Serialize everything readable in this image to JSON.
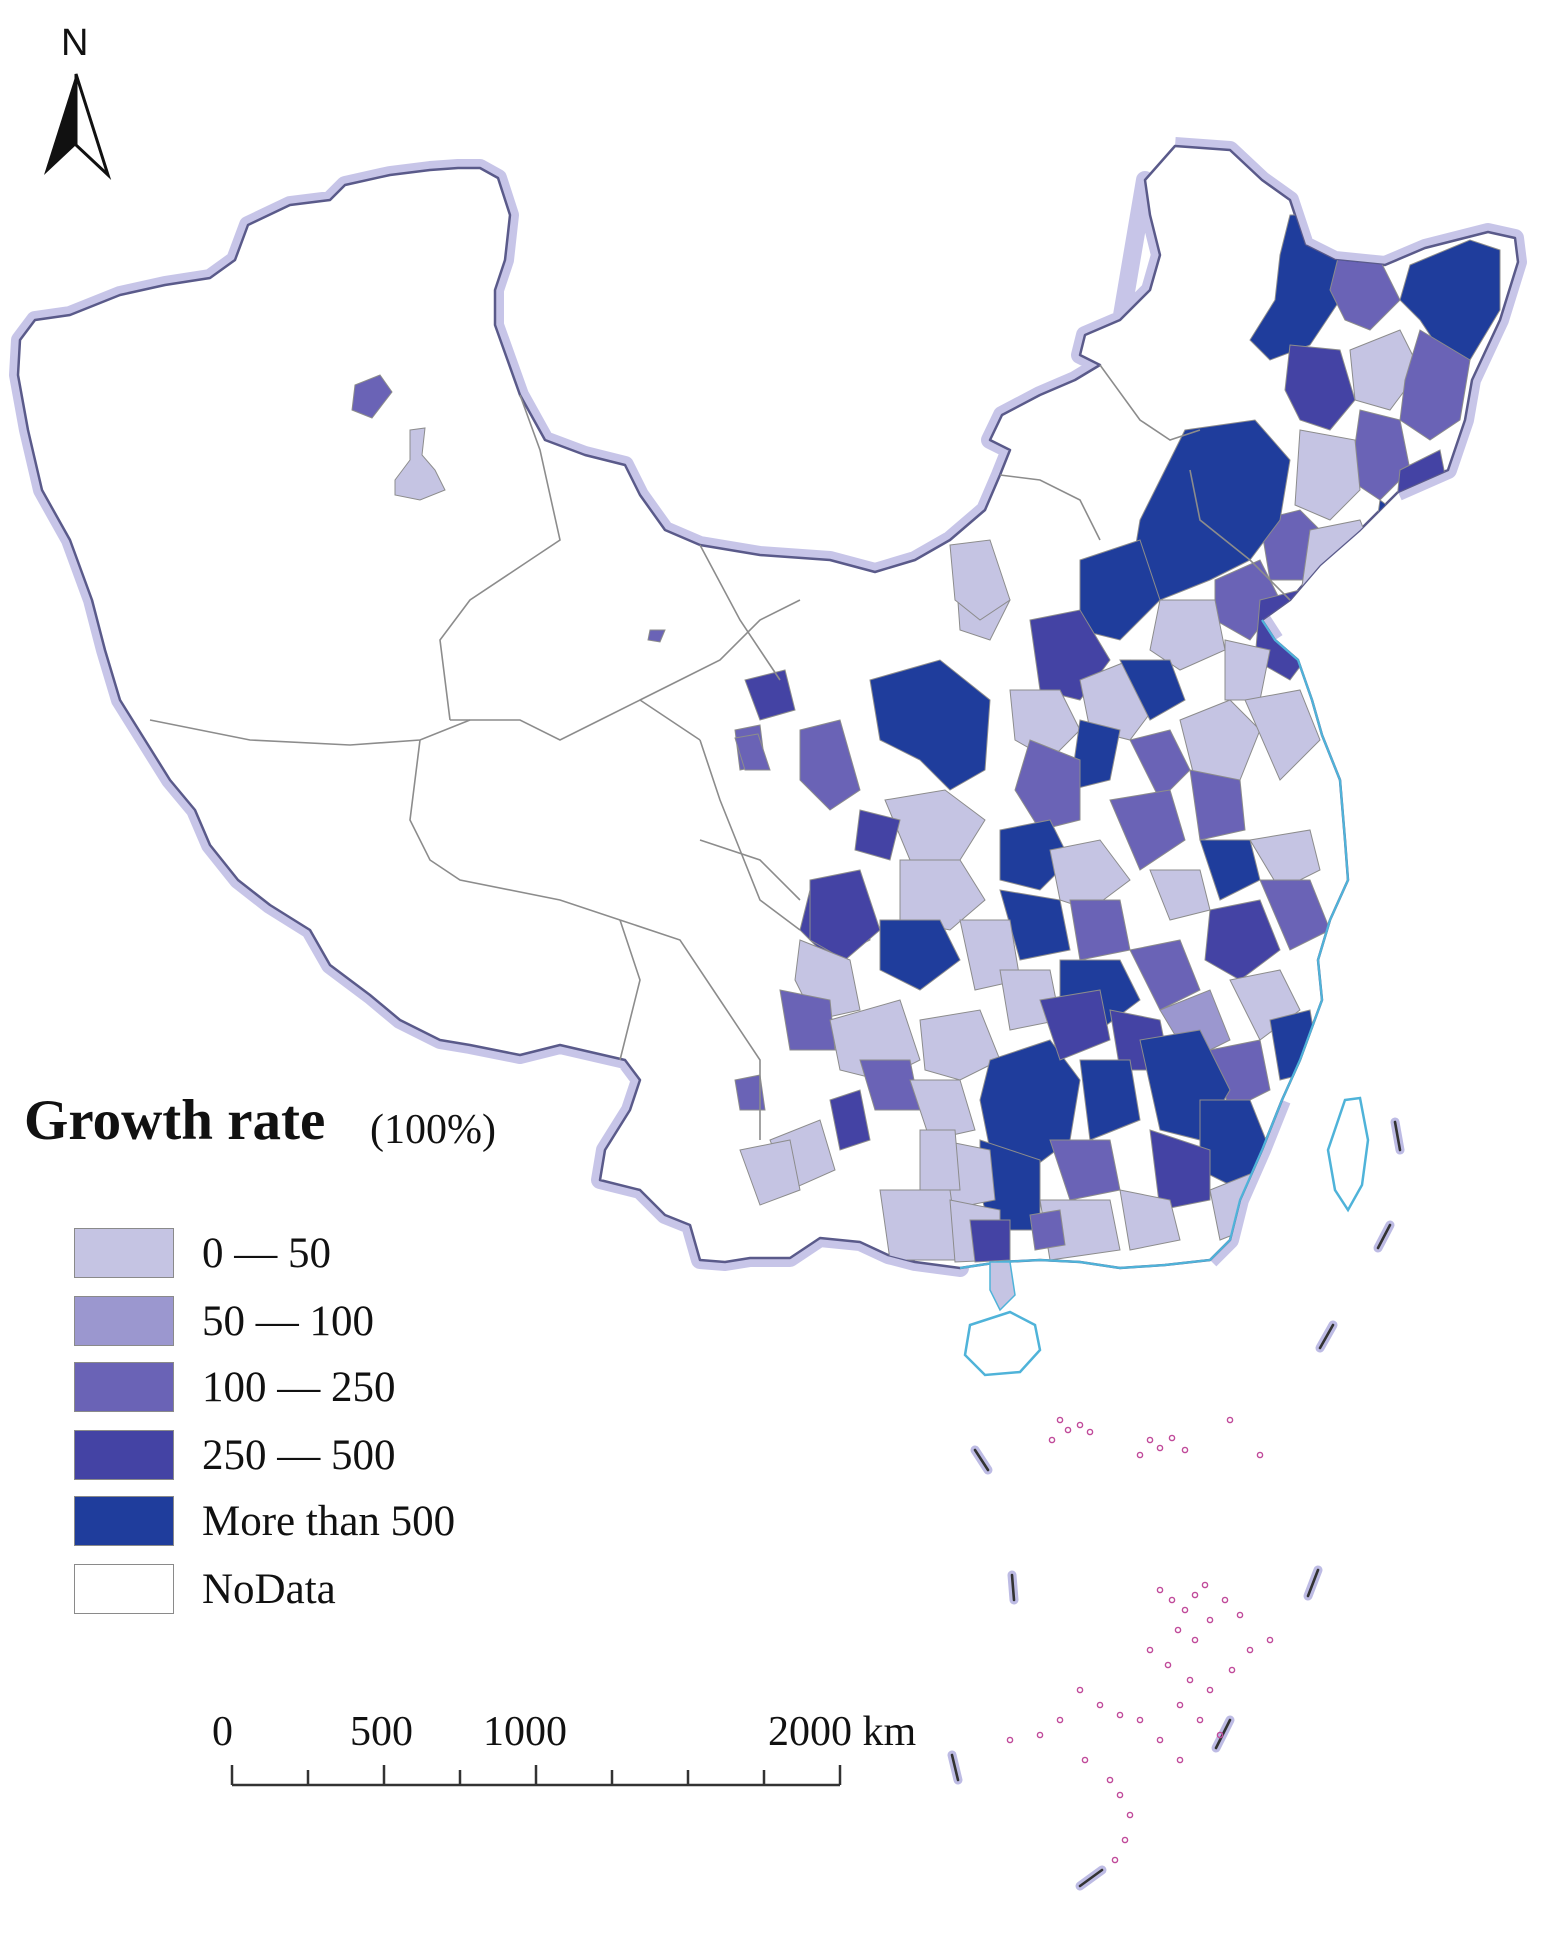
{
  "map": {
    "north_label": "N",
    "legend": {
      "title": "Growth rate",
      "unit": "(100%)",
      "classes": [
        {
          "label": "0 — 50",
          "color": "#c5c4e3"
        },
        {
          "label": "50 — 100",
          "color": "#9b97cf"
        },
        {
          "label": "100 — 250",
          "color": "#6a63b6"
        },
        {
          "label": "250 — 500",
          "color": "#4443a4"
        },
        {
          "label": "More than 500",
          "color": "#1f3d9c"
        },
        {
          "label": "NoData",
          "color": "#ffffff"
        }
      ]
    },
    "scale_bar": {
      "labels": [
        "0",
        "500",
        "1000",
        "2000 km"
      ]
    },
    "colors": {
      "border_halo": "#bdbbe4",
      "border_line": "#5a5a8a",
      "internal_line": "#8c8c8c",
      "coast": "#4fb3d9",
      "islands": "#c04a9a"
    }
  }
}
